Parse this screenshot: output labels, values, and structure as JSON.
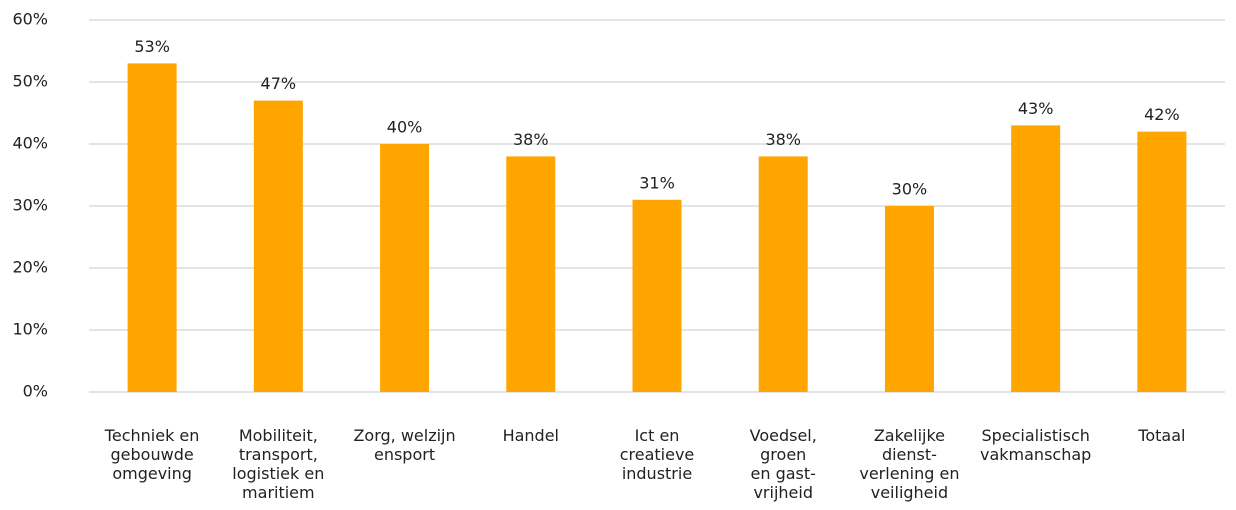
{
  "chart_data": {
    "type": "bar",
    "categories": [
      "Techniek en\ngebouwde\nomgeving",
      "Mobiliteit,\ntransport,\nlogistiek en\nmaritiem",
      "Zorg, welzijn\nensport",
      "Handel",
      "Ict en\ncreatieve\nindustrie",
      "Voedsel,\ngroen\nen gast-\nvrijheid",
      "Zakelijke\ndienst-\nverlening en\nveiligheid",
      "Specialistisch\nvakmanschap",
      "Totaal"
    ],
    "values": [
      53,
      47,
      40,
      38,
      31,
      38,
      30,
      43,
      42
    ],
    "value_labels": [
      "53%",
      "47%",
      "40%",
      "38%",
      "31%",
      "38%",
      "30%",
      "43%",
      "42%"
    ],
    "color": "#ffa500",
    "ylim": [
      0,
      60
    ],
    "yticks": [
      {
        "value": 0,
        "label": "0%"
      },
      {
        "value": 10,
        "label": "10%"
      },
      {
        "value": 20,
        "label": "20%"
      },
      {
        "value": 30,
        "label": "30%"
      },
      {
        "value": 40,
        "label": "40%"
      },
      {
        "value": 50,
        "label": "50%"
      },
      {
        "value": 60,
        "label": "60%"
      }
    ],
    "grid": true
  }
}
